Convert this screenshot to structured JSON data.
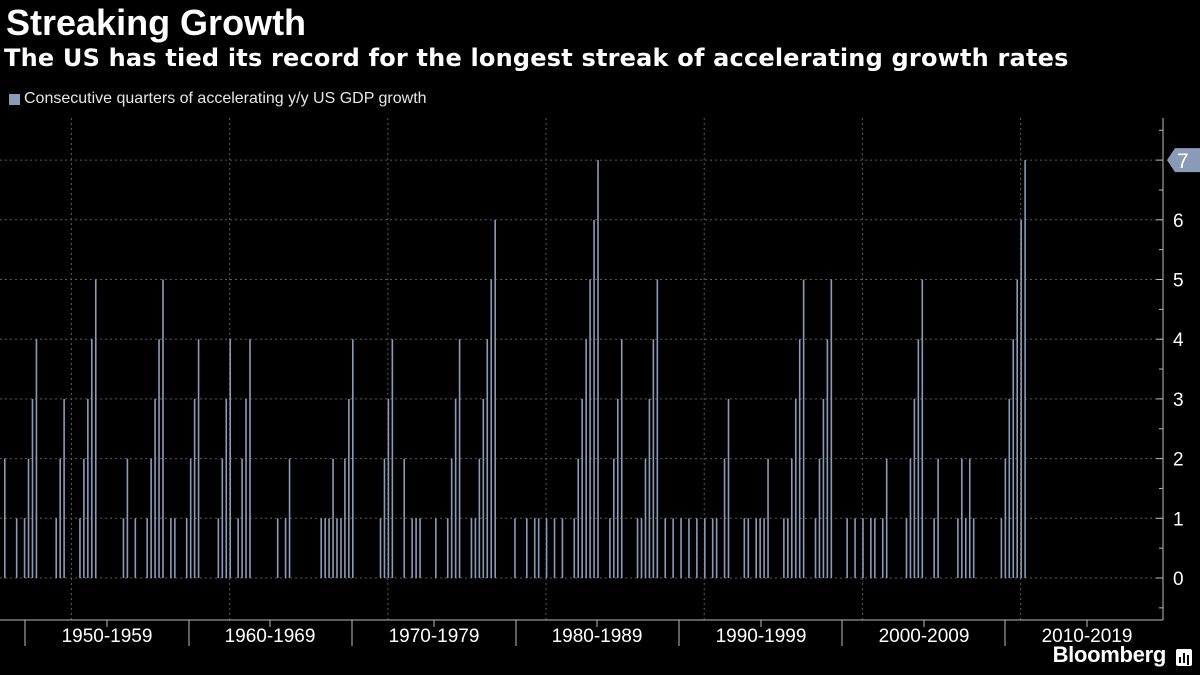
{
  "chart_data": {
    "type": "bar",
    "title": "Streaking Growth",
    "subtitle": "The US has tied its record for the longest streak of accelerating growth rates",
    "legend": [
      "Consecutive quarters of accelerating y/y US GDP growth"
    ],
    "series_color": "#8a9bb8",
    "xlabel": "",
    "ylabel": "",
    "ylim": [
      -0.7,
      7.7
    ],
    "yticks": [
      0,
      1,
      2,
      3,
      4,
      5,
      6,
      7
    ],
    "x_start": 1947,
    "x_end": 2018.75,
    "decade_labels": [
      "1950-1959",
      "1960-1969",
      "1970-1979",
      "1980-1989",
      "1990-1999",
      "2000-2009",
      "2010-2019"
    ],
    "last_value_label": "7",
    "grid": true,
    "bars": [
      [
        1947.0,
        2
      ],
      [
        1947.75,
        1
      ],
      [
        1948.25,
        1
      ],
      [
        1948.5,
        2
      ],
      [
        1948.75,
        3
      ],
      [
        1949.0,
        4
      ],
      [
        1950.25,
        1
      ],
      [
        1950.5,
        2
      ],
      [
        1950.75,
        3
      ],
      [
        1951.75,
        1
      ],
      [
        1952.0,
        2
      ],
      [
        1952.25,
        3
      ],
      [
        1952.5,
        4
      ],
      [
        1952.75,
        5
      ],
      [
        1954.5,
        1
      ],
      [
        1954.75,
        2
      ],
      [
        1955.25,
        1
      ],
      [
        1956.0,
        1
      ],
      [
        1956.25,
        2
      ],
      [
        1956.5,
        3
      ],
      [
        1956.75,
        4
      ],
      [
        1957.0,
        5
      ],
      [
        1957.5,
        1
      ],
      [
        1957.75,
        1
      ],
      [
        1958.5,
        1
      ],
      [
        1958.75,
        2
      ],
      [
        1959.0,
        3
      ],
      [
        1959.25,
        4
      ],
      [
        1960.5,
        1
      ],
      [
        1960.75,
        2
      ],
      [
        1961.0,
        3
      ],
      [
        1961.25,
        4
      ],
      [
        1961.75,
        1
      ],
      [
        1962.0,
        2
      ],
      [
        1962.25,
        3
      ],
      [
        1962.5,
        4
      ],
      [
        1964.25,
        1
      ],
      [
        1964.75,
        1
      ],
      [
        1965.0,
        2
      ],
      [
        1967.0,
        1
      ],
      [
        1967.25,
        1
      ],
      [
        1967.5,
        1
      ],
      [
        1967.75,
        2
      ],
      [
        1968.0,
        1
      ],
      [
        1968.25,
        1
      ],
      [
        1968.5,
        2
      ],
      [
        1968.75,
        3
      ],
      [
        1969.0,
        4
      ],
      [
        1970.75,
        1
      ],
      [
        1971.0,
        2
      ],
      [
        1971.25,
        3
      ],
      [
        1971.5,
        4
      ],
      [
        1972.25,
        2
      ],
      [
        1972.75,
        1
      ],
      [
        1973.0,
        1
      ],
      [
        1973.25,
        1
      ],
      [
        1974.25,
        1
      ],
      [
        1975.0,
        1
      ],
      [
        1975.25,
        2
      ],
      [
        1975.5,
        3
      ],
      [
        1975.75,
        4
      ],
      [
        1976.5,
        1
      ],
      [
        1976.75,
        1
      ],
      [
        1977.0,
        2
      ],
      [
        1977.25,
        3
      ],
      [
        1977.5,
        4
      ],
      [
        1977.75,
        5
      ],
      [
        1978.0,
        6
      ],
      [
        1979.25,
        1
      ],
      [
        1980.0,
        1
      ],
      [
        1980.5,
        1
      ],
      [
        1980.75,
        1
      ],
      [
        1981.25,
        1
      ],
      [
        1981.75,
        1
      ],
      [
        1982.25,
        1
      ],
      [
        1983.0,
        1
      ],
      [
        1983.25,
        2
      ],
      [
        1983.5,
        3
      ],
      [
        1983.75,
        4
      ],
      [
        1984.0,
        5
      ],
      [
        1984.25,
        6
      ],
      [
        1984.5,
        7
      ],
      [
        1985.25,
        1
      ],
      [
        1985.5,
        2
      ],
      [
        1985.75,
        3
      ],
      [
        1986.0,
        4
      ],
      [
        1987.0,
        1
      ],
      [
        1987.25,
        1
      ],
      [
        1987.5,
        2
      ],
      [
        1987.75,
        3
      ],
      [
        1988.0,
        4
      ],
      [
        1988.25,
        5
      ],
      [
        1988.75,
        1
      ],
      [
        1989.25,
        1
      ],
      [
        1989.75,
        1
      ],
      [
        1990.25,
        1
      ],
      [
        1990.75,
        1
      ],
      [
        1991.25,
        1
      ],
      [
        1991.75,
        1
      ],
      [
        1992.0,
        1
      ],
      [
        1992.5,
        2
      ],
      [
        1992.75,
        3
      ],
      [
        1993.75,
        1
      ],
      [
        1994.0,
        1
      ],
      [
        1994.5,
        1
      ],
      [
        1994.75,
        1
      ],
      [
        1995.0,
        1
      ],
      [
        1995.25,
        2
      ],
      [
        1996.25,
        1
      ],
      [
        1996.5,
        1
      ],
      [
        1996.75,
        2
      ],
      [
        1997.0,
        3
      ],
      [
        1997.25,
        4
      ],
      [
        1997.5,
        5
      ],
      [
        1998.25,
        1
      ],
      [
        1998.5,
        2
      ],
      [
        1998.75,
        3
      ],
      [
        1999.0,
        4
      ],
      [
        1999.25,
        5
      ],
      [
        2000.25,
        1
      ],
      [
        2000.75,
        1
      ],
      [
        2001.25,
        1
      ],
      [
        2001.75,
        1
      ],
      [
        2002.0,
        1
      ],
      [
        2002.5,
        1
      ],
      [
        2002.75,
        2
      ],
      [
        2004.0,
        1
      ],
      [
        2004.25,
        2
      ],
      [
        2004.5,
        3
      ],
      [
        2004.75,
        4
      ],
      [
        2005.0,
        5
      ],
      [
        2005.75,
        1
      ],
      [
        2006.0,
        2
      ],
      [
        2007.25,
        1
      ],
      [
        2007.5,
        2
      ],
      [
        2007.75,
        1
      ],
      [
        2008.0,
        2
      ],
      [
        2008.25,
        1
      ],
      [
        2010.0,
        1
      ],
      [
        2010.25,
        2
      ],
      [
        2010.5,
        3
      ],
      [
        2010.75,
        4
      ],
      [
        2011.0,
        5
      ],
      [
        2011.25,
        6
      ],
      [
        2011.5,
        7
      ]
    ]
  },
  "brand": {
    "name": "Bloomberg",
    "icon": "bloomberg-chart-icon"
  }
}
